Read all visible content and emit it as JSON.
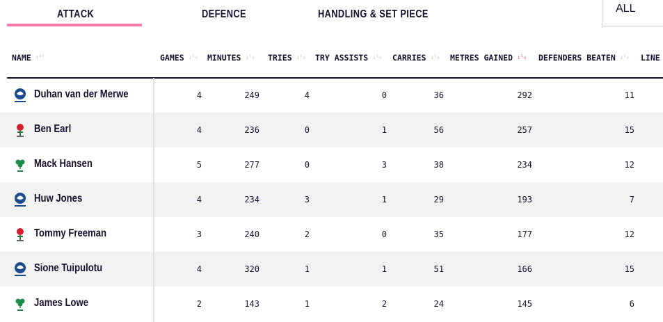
{
  "tabs": [
    {
      "label": "ATTACK",
      "active": true
    },
    {
      "label": "DEFENCE"
    },
    {
      "label": "HANDLING & SET PIECE"
    }
  ],
  "filter": {
    "value": "ALL"
  },
  "accent": "#f47aa9",
  "columns": [
    "NAME",
    "GAMES",
    "MINUTES",
    "TRIES",
    "TRY ASSISTS",
    "CARRIES",
    "METRES GAINED",
    "DEFENDERS BEATEN",
    "LINE"
  ],
  "sorted_column": "METRES GAINED",
  "rows": [
    {
      "name": "Duhan van der Merwe",
      "team": "scotland",
      "vals": [
        "4",
        "249",
        "4",
        "0",
        "36",
        "292",
        "11"
      ]
    },
    {
      "name": "Ben Earl",
      "team": "england",
      "vals": [
        "4",
        "236",
        "0",
        "1",
        "56",
        "257",
        "15"
      ]
    },
    {
      "name": "Mack Hansen",
      "team": "ireland",
      "vals": [
        "5",
        "277",
        "0",
        "3",
        "38",
        "234",
        "12"
      ]
    },
    {
      "name": "Huw Jones",
      "team": "scotland",
      "vals": [
        "4",
        "234",
        "3",
        "1",
        "29",
        "193",
        "7"
      ]
    },
    {
      "name": "Tommy Freeman",
      "team": "england",
      "vals": [
        "3",
        "240",
        "2",
        "0",
        "35",
        "177",
        "12"
      ]
    },
    {
      "name": "Sione Tuipulotu",
      "team": "scotland",
      "vals": [
        "4",
        "320",
        "1",
        "1",
        "51",
        "166",
        "15"
      ]
    },
    {
      "name": "James Lowe",
      "team": "ireland",
      "vals": [
        "2",
        "143",
        "1",
        "2",
        "24",
        "145",
        "6"
      ]
    }
  ]
}
